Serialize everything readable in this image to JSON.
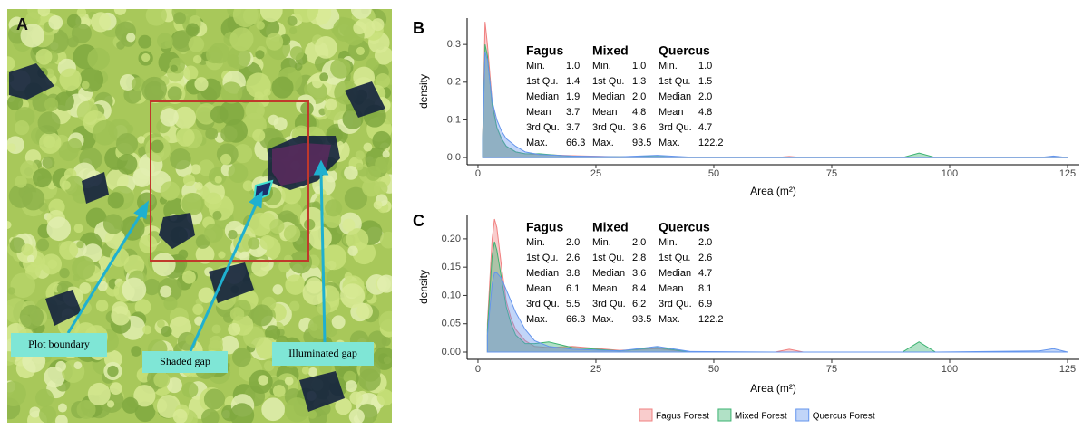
{
  "image_panel": {
    "label": "A",
    "annotations": [
      "Plot boundary",
      "Shaded gap",
      "Illuminated gap"
    ]
  },
  "chart_data": [
    {
      "type": "area",
      "panel_label": "B",
      "x_label": "Area (m²)",
      "y_label": "density",
      "x": [
        1,
        1.5,
        2,
        3,
        4,
        5,
        6,
        8,
        10,
        13,
        20,
        30,
        38,
        45,
        63,
        66,
        69,
        90,
        93.5,
        97,
        119,
        122,
        125
      ],
      "series": [
        {
          "name": "Fagus Forest",
          "color": "#f08080",
          "values": [
            0.05,
            0.36,
            0.3,
            0.15,
            0.08,
            0.05,
            0.03,
            0.015,
            0.01,
            0.008,
            0.005,
            0.002,
            0.001,
            0,
            0,
            0.003,
            0,
            0,
            0,
            0,
            0,
            0,
            0
          ]
        },
        {
          "name": "Mixed Forest",
          "color": "#3cb371",
          "values": [
            0.05,
            0.3,
            0.27,
            0.14,
            0.08,
            0.05,
            0.03,
            0.015,
            0.01,
            0.01,
            0.003,
            0.002,
            0.003,
            0,
            0,
            0,
            0,
            0,
            0.012,
            0,
            0,
            0,
            0
          ]
        },
        {
          "name": "Quercus Forest",
          "color": "#6495ed",
          "values": [
            0.05,
            0.28,
            0.26,
            0.15,
            0.1,
            0.07,
            0.05,
            0.03,
            0.015,
            0.008,
            0.004,
            0.002,
            0.006,
            0.001,
            0,
            0,
            0,
            0,
            0,
            0,
            0,
            0.004,
            0
          ]
        }
      ],
      "xlim": [
        -2.3,
        127.5
      ],
      "xticks": [
        0,
        25,
        50,
        75,
        100,
        125
      ],
      "ylim": [
        -0.019,
        0.37
      ],
      "yticks": [
        {
          "value": 0,
          "label": "0.0"
        },
        0.1,
        0.2,
        0.3
      ],
      "stats": {
        "row_labels": [
          "Min.",
          "1st Qu.",
          "Median",
          "Mean",
          "3rd Qu.",
          "Max."
        ],
        "columns": [
          {
            "name": "Fagus",
            "values": [
              "1.0",
              "1.4",
              "1.9",
              "3.7",
              "3.7",
              "66.3"
            ]
          },
          {
            "name": "Mixed",
            "values": [
              "1.0",
              "1.3",
              "2.0",
              "4.8",
              "3.6",
              "93.5"
            ]
          },
          {
            "name": "Quercus",
            "values": [
              "1.0",
              "1.5",
              "2.0",
              "4.8",
              "4.7",
              "122.2"
            ]
          }
        ]
      }
    },
    {
      "type": "area",
      "panel_label": "C",
      "x_label": "Area (m²)",
      "y_label": "density",
      "x": [
        2,
        3,
        3.5,
        4,
        5,
        6,
        7,
        8,
        10,
        12,
        15,
        20,
        30,
        38,
        45,
        63,
        66,
        69,
        90,
        93.5,
        97,
        119,
        122,
        125
      ],
      "series": [
        {
          "color": "#f08080",
          "values": [
            0.05,
            0.2,
            0.235,
            0.22,
            0.15,
            0.09,
            0.06,
            0.04,
            0.02,
            0.01,
            0.008,
            0.01,
            0.003,
            0.006,
            0,
            0,
            0.005,
            0,
            0,
            0,
            0,
            0,
            0,
            0
          ]
        },
        {
          "color": "#3cb371",
          "values": [
            0.04,
            0.17,
            0.195,
            0.18,
            0.13,
            0.08,
            0.05,
            0.03,
            0.015,
            0.015,
            0.018,
            0.008,
            0.002,
            0.008,
            0,
            0,
            0,
            0,
            0,
            0.018,
            0,
            0,
            0,
            0
          ]
        },
        {
          "color": "#6495ed",
          "values": [
            0.03,
            0.12,
            0.14,
            0.14,
            0.13,
            0.11,
            0.09,
            0.07,
            0.04,
            0.02,
            0.01,
            0.005,
            0.002,
            0.01,
            0.001,
            0,
            0,
            0,
            0,
            0,
            0,
            0.002,
            0.006,
            0
          ]
        }
      ],
      "xlim": [
        -2.3,
        127.5
      ],
      "xticks": [
        0,
        25,
        50,
        75,
        100,
        125
      ],
      "ylim": [
        -0.0128,
        0.243
      ],
      "yticks": [
        {
          "value": 0,
          "label": "0.00"
        },
        0.05,
        {
          "value": 0.1,
          "label": "0.10"
        },
        0.15,
        {
          "value": 0.2,
          "label": "0.20"
        }
      ],
      "stats": {
        "row_labels": [
          "Min.",
          "1st Qu.",
          "Median",
          "Mean",
          "3rd Qu.",
          "Max."
        ],
        "columns": [
          {
            "name": "Fagus",
            "values": [
              "2.0",
              "2.6",
              "3.8",
              "6.1",
              "5.5",
              "66.3"
            ]
          },
          {
            "name": "Mixed",
            "values": [
              "2.0",
              "2.8",
              "3.6",
              "8.4",
              "6.2",
              "93.5"
            ]
          },
          {
            "name": "Quercus",
            "values": [
              "2.0",
              "2.6",
              "4.7",
              "8.1",
              "6.9",
              "122.2"
            ]
          }
        ]
      }
    }
  ]
}
